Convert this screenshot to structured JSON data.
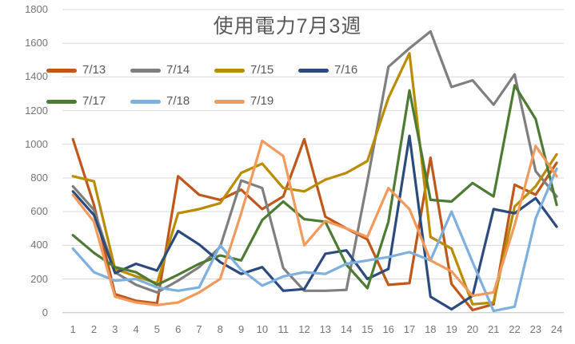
{
  "title": "使用電力7月3週",
  "chart_data": {
    "type": "line",
    "title": "使用電力7月3週",
    "xlabel": "",
    "ylabel": "",
    "x": [
      1,
      2,
      3,
      4,
      5,
      6,
      7,
      8,
      9,
      10,
      11,
      12,
      13,
      14,
      15,
      16,
      17,
      18,
      19,
      20,
      21,
      22,
      23,
      24
    ],
    "x_labels": [
      "1",
      "2",
      "3",
      "4",
      "5",
      "6",
      "7",
      "8",
      "9",
      "10",
      "11",
      "12",
      "13",
      "14",
      "15",
      "16",
      "17",
      "18",
      "19",
      "20",
      "21",
      "22",
      "23",
      "24"
    ],
    "ylim": [
      0,
      1800
    ],
    "ytick_step": 200,
    "ytick_labels": [
      "0",
      "200",
      "400",
      "600",
      "800",
      "1000",
      "1200",
      "1400",
      "1600",
      "1800"
    ],
    "grid": true,
    "legend_position": "top-left inside plot, two rows",
    "series": [
      {
        "name": "7/13",
        "color": "#C0571B",
        "values": [
          1030,
          640,
          110,
          70,
          55,
          810,
          700,
          670,
          730,
          615,
          690,
          1030,
          570,
          500,
          435,
          165,
          175,
          920,
          170,
          15,
          50,
          760,
          700,
          890
        ]
      },
      {
        "name": "7/14",
        "color": "#7F7F7F",
        "values": [
          750,
          610,
          240,
          165,
          120,
          190,
          270,
          390,
          785,
          740,
          265,
          130,
          130,
          135,
          780,
          1460,
          1570,
          1670,
          1340,
          1380,
          1235,
          1415,
          840,
          690
        ]
      },
      {
        "name": "7/15",
        "color": "#BA8C00",
        "values": [
          810,
          780,
          260,
          215,
          175,
          590,
          615,
          650,
          830,
          885,
          740,
          720,
          790,
          830,
          900,
          1275,
          1540,
          450,
          380,
          50,
          60,
          630,
          750,
          940
        ]
      },
      {
        "name": "7/16",
        "color": "#2B4B7E",
        "values": [
          720,
          580,
          235,
          290,
          250,
          485,
          405,
          300,
          230,
          270,
          130,
          140,
          350,
          370,
          200,
          260,
          1050,
          95,
          20,
          100,
          615,
          590,
          680,
          510
        ]
      },
      {
        "name": "7/17",
        "color": "#4E7B34",
        "values": [
          460,
          355,
          270,
          240,
          165,
          225,
          290,
          340,
          310,
          550,
          660,
          555,
          540,
          285,
          145,
          540,
          1320,
          670,
          660,
          770,
          690,
          1350,
          1150,
          640
        ]
      },
      {
        "name": "7/18",
        "color": "#7DB0DF",
        "values": [
          380,
          240,
          190,
          200,
          150,
          130,
          150,
          400,
          255,
          160,
          215,
          240,
          230,
          290,
          310,
          330,
          360,
          310,
          600,
          300,
          10,
          35,
          560,
          855
        ]
      },
      {
        "name": "7/19",
        "color": "#F19A5C",
        "values": [
          700,
          540,
          95,
          60,
          45,
          60,
          120,
          200,
          590,
          1020,
          930,
          400,
          545,
          500,
          450,
          740,
          615,
          310,
          245,
          100,
          120,
          520,
          990,
          810
        ]
      }
    ]
  },
  "colors": {
    "grid_line": "#D9D9D9",
    "axis_line": "#BFBFBF",
    "title_text": "#595959",
    "axis_text": "#757575",
    "legend_text": "#595959",
    "background": "#FFFFFF"
  }
}
